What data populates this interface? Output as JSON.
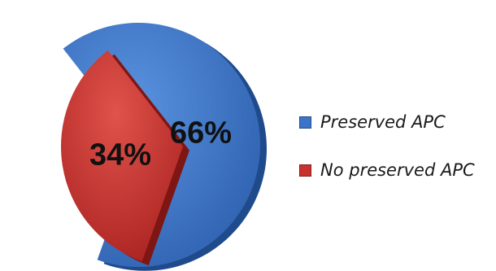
{
  "chart_data": {
    "type": "pie",
    "title": "",
    "slices": [
      {
        "label": "Preserved APC",
        "value": 66,
        "display": "66%",
        "color": "#3b74c9"
      },
      {
        "label": "No preserved APC",
        "value": 34,
        "display": "34%",
        "color": "#c9312e"
      }
    ],
    "legend_position": "right",
    "exploded": true,
    "style": "3d"
  }
}
